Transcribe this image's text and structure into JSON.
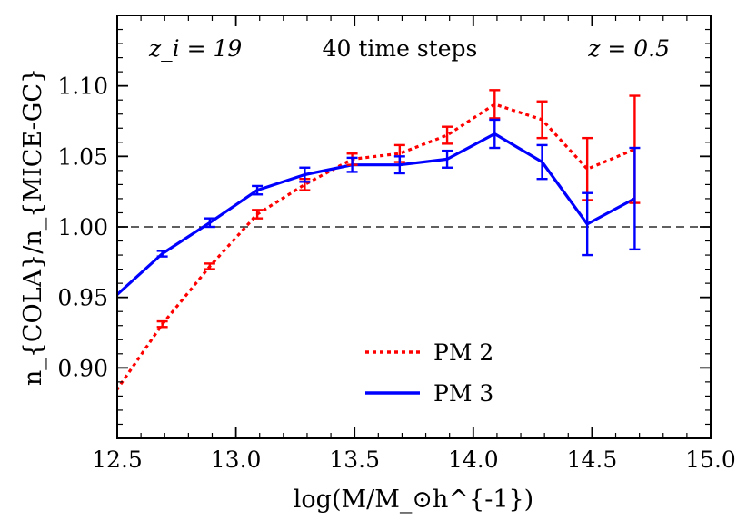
{
  "chart_data": {
    "type": "line",
    "title": "",
    "xlabel": "log(M/M_⊙h^{-1})",
    "ylabel": "n_{COLA}/n_{MICE-GC}",
    "xlim": [
      12.5,
      15.0
    ],
    "ylim": [
      0.85,
      1.15
    ],
    "xticks": [
      12.5,
      13.0,
      13.5,
      14.0,
      14.5,
      15.0
    ],
    "xtick_labels": [
      "12.5",
      "13.0",
      "13.5",
      "14.0",
      "14.5",
      "15.0"
    ],
    "yticks": [
      0.9,
      0.95,
      1.0,
      1.05,
      1.1
    ],
    "ytick_labels": [
      "0.90",
      "0.95",
      "1.00",
      "1.05",
      "1.10"
    ],
    "reference_line": {
      "y": 1.0,
      "style": "dashed",
      "color": "#000000"
    },
    "annotations": {
      "left": "z_i = 19",
      "center": "40 time steps",
      "right": "z = 0.5"
    },
    "legend_position": "bottom-center",
    "series": [
      {
        "name": "PM 2",
        "color": "#ff0000",
        "linestyle": "dotted",
        "x": [
          12.48,
          12.69,
          12.89,
          13.09,
          13.29,
          13.49,
          13.69,
          13.89,
          14.09,
          14.29,
          14.48,
          14.68
        ],
        "y": [
          0.88,
          0.931,
          0.972,
          1.009,
          1.03,
          1.048,
          1.052,
          1.065,
          1.087,
          1.076,
          1.041,
          1.055
        ],
        "err": [
          0.0,
          0.002,
          0.002,
          0.003,
          0.004,
          0.004,
          0.006,
          0.006,
          0.01,
          0.013,
          0.022,
          0.038
        ]
      },
      {
        "name": "PM 3",
        "color": "#0000ff",
        "linestyle": "solid",
        "x": [
          12.48,
          12.69,
          12.89,
          13.09,
          13.29,
          13.49,
          13.69,
          13.89,
          14.09,
          14.29,
          14.48,
          14.68
        ],
        "y": [
          0.949,
          0.981,
          1.003,
          1.026,
          1.037,
          1.044,
          1.044,
          1.048,
          1.066,
          1.046,
          1.002,
          1.02
        ],
        "err": [
          0.0,
          0.002,
          0.003,
          0.003,
          0.005,
          0.005,
          0.006,
          0.006,
          0.01,
          0.012,
          0.022,
          0.036
        ]
      }
    ]
  }
}
